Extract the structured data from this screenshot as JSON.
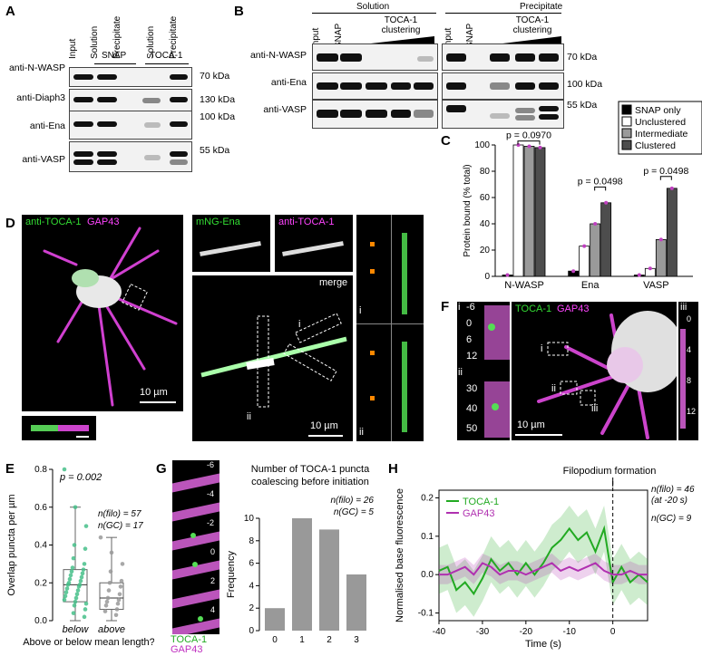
{
  "panelA": {
    "label": "A",
    "columns": [
      "Input",
      "Solution",
      "Precipitate",
      "Solution",
      "Precipitate"
    ],
    "groups": [
      "SNAP",
      "TOCA-1"
    ],
    "rows": [
      "anti-N-WASP",
      "anti-Diaph3",
      "anti-Ena",
      "anti-VASP"
    ],
    "kda": [
      "70 kDa",
      "130 kDa",
      "100 kDa",
      "55 kDa"
    ]
  },
  "panelB": {
    "label": "B",
    "headers": [
      "Solution",
      "Precipitate"
    ],
    "columns": [
      "Input",
      "SNAP"
    ],
    "clustering": "TOCA-1 clustering",
    "rows": [
      "anti-N-WASP",
      "anti-Ena",
      "anti-VASP"
    ],
    "kda": [
      "70 kDa",
      "100 kDa",
      "55 kDa"
    ]
  },
  "panelC": {
    "label": "C",
    "chart_data": {
      "type": "bar",
      "ylabel": "Protein bound (% total)",
      "ylim": [
        0,
        100
      ],
      "yticks": [
        0,
        20,
        40,
        60,
        80,
        100
      ],
      "categories": [
        "N-WASP",
        "Ena",
        "VASP"
      ],
      "series": [
        {
          "name": "SNAP only",
          "color": "#000000",
          "values": [
            1,
            4,
            1
          ]
        },
        {
          "name": "Unclustered",
          "color": "#ffffff",
          "values": [
            100,
            23,
            6
          ]
        },
        {
          "name": "Intermediate",
          "color": "#9a9a9a",
          "values": [
            99,
            40,
            28
          ]
        },
        {
          "name": "Clustered",
          "color": "#4d4d4d",
          "values": [
            98,
            56,
            67
          ]
        }
      ],
      "pvalues": [
        "p = 0.0970",
        "p = 0.0498",
        "p = 0.0498"
      ]
    }
  },
  "panelD": {
    "label": "D",
    "title_green": "anti-TOCA-1",
    "title_magenta": "GAP43",
    "scale": "10 µm",
    "sub_green": "mNG-Ena",
    "sub_magenta": "anti-TOCA-1",
    "merge": "merge",
    "scale2": "10 µm",
    "roi_i": "i",
    "roi_ii": "ii"
  },
  "panelE": {
    "label": "E",
    "chart_data": {
      "type": "scatter",
      "ylabel": "Overlap puncta per µm",
      "ylim": [
        0,
        0.8
      ],
      "yticks": [
        "0.0",
        "0.2",
        "0.4",
        "0.6",
        "0.8"
      ],
      "categories": [
        "below",
        "above"
      ],
      "xlabel": "Above or below mean length?",
      "pvalue": "p = 0.002",
      "n_filo": "n(filo) = 57",
      "n_gc": "n(GC) = 17",
      "box_below": {
        "min": 0.0,
        "q1": 0.1,
        "median": 0.19,
        "q3": 0.27,
        "max": 0.6
      },
      "box_above": {
        "min": 0.0,
        "q1": 0.06,
        "median": 0.12,
        "q3": 0.2,
        "max": 0.44
      },
      "points_below": [
        0.8,
        0.6,
        0.5,
        0.4,
        0.38,
        0.33,
        0.3,
        0.28,
        0.27,
        0.26,
        0.25,
        0.24,
        0.23,
        0.22,
        0.21,
        0.2,
        0.19,
        0.19,
        0.18,
        0.17,
        0.16,
        0.15,
        0.14,
        0.13,
        0.12,
        0.11,
        0.1,
        0.09,
        0.08,
        0.06,
        0.04,
        0.02
      ],
      "points_above": [
        0.44,
        0.36,
        0.3,
        0.26,
        0.21,
        0.2,
        0.18,
        0.16,
        0.14,
        0.12,
        0.11,
        0.1,
        0.09,
        0.08,
        0.06,
        0.05,
        0.03
      ]
    }
  },
  "panelF": {
    "label": "F",
    "title_green": "TOCA-1",
    "title_magenta": "GAP43",
    "scale": "10 µm",
    "roi": [
      "i",
      "ii",
      "iii"
    ],
    "times_i": [
      "-6",
      "0",
      "6",
      "12"
    ],
    "times_ii": [
      "30",
      "40",
      "50"
    ],
    "times_iii": [
      "0",
      "4",
      "8",
      "12"
    ]
  },
  "panelG": {
    "label": "G",
    "times": [
      "-6",
      "-4",
      "-2",
      "0",
      "2",
      "4"
    ],
    "legend_green": "TOCA-1",
    "legend_magenta": "GAP43",
    "chart_data": {
      "type": "bar",
      "title": "Number of TOCA-1 puncta coalescing before initiation",
      "ylabel": "Frequency",
      "categories": [
        "0",
        "1",
        "2",
        "3"
      ],
      "values": [
        2,
        10,
        9,
        5
      ],
      "ylim": [
        0,
        10
      ],
      "yticks": [
        0,
        2,
        4,
        6,
        8,
        10
      ],
      "n_filo": "n(filo) = 26",
      "n_gc": "n(GC) = 5"
    }
  },
  "panelH": {
    "label": "H",
    "chart_data": {
      "type": "line",
      "xlabel": "Time (s)",
      "ylabel": "Normalised base fluorescence",
      "xlim": [
        -40,
        8
      ],
      "ylim": [
        -0.12,
        0.22
      ],
      "xticks": [
        -40,
        -30,
        -20,
        -10,
        0
      ],
      "yticks": [
        "-0.1",
        "0.0",
        "0.1",
        "0.2"
      ],
      "annotation": "Filopodium formation",
      "n_filo": "n(filo) = 46",
      "n_filo2": "(at -20 s)",
      "n_gc": "n(GC) = 9",
      "x": [
        -40,
        -38,
        -36,
        -34,
        -32,
        -30,
        -28,
        -26,
        -24,
        -22,
        -20,
        -18,
        -16,
        -14,
        -12,
        -10,
        -8,
        -6,
        -4,
        -2,
        0,
        2,
        4,
        6,
        8
      ],
      "series": [
        {
          "name": "TOCA-1",
          "color": "#22aa22",
          "values": [
            0.01,
            0.02,
            -0.04,
            -0.02,
            -0.05,
            -0.01,
            0.04,
            0.01,
            0.03,
            0.0,
            0.03,
            0.0,
            0.03,
            0.07,
            0.09,
            0.12,
            0.09,
            0.11,
            0.06,
            0.12,
            -0.02,
            0.02,
            -0.02,
            0.0,
            -0.02
          ],
          "band": 0.06
        },
        {
          "name": "GAP43",
          "color": "#b030b0",
          "values": [
            0.0,
            0.0,
            0.01,
            0.02,
            0.0,
            0.03,
            0.02,
            0.0,
            0.01,
            0.01,
            0.0,
            0.01,
            0.02,
            0.03,
            0.01,
            0.02,
            0.01,
            0.02,
            0.03,
            0.01,
            0.0,
            0.0,
            0.01,
            0.0,
            0.0
          ],
          "band": 0.025
        }
      ]
    }
  }
}
